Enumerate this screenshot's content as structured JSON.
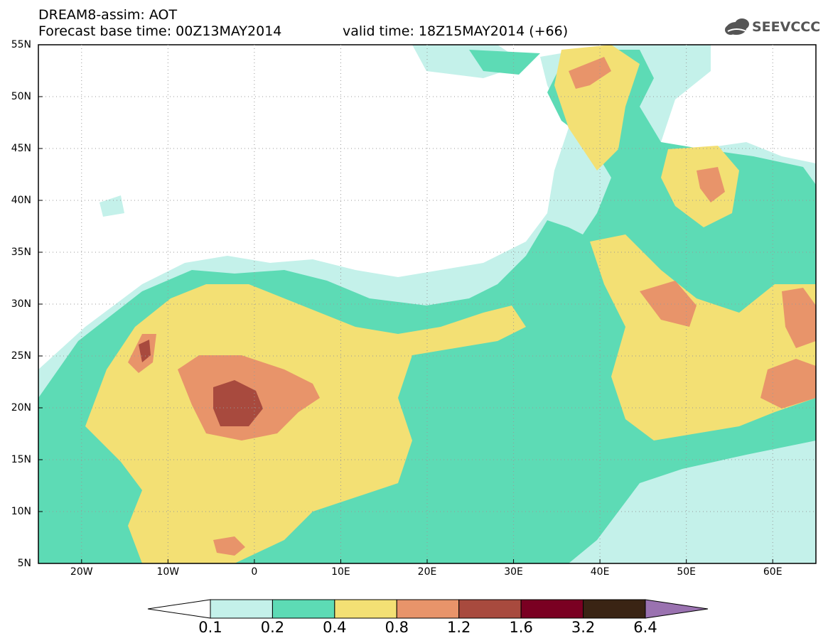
{
  "header": {
    "title": "DREAM8-assim: AOT",
    "base_time": "Forecast base time: 00Z13MAY2014",
    "valid_time": "valid time: 18Z15MAY2014 (+66)"
  },
  "logo": {
    "text": "SEEVCCC",
    "icon": "cloud-logo-icon"
  },
  "map": {
    "lat_labels": [
      "55N",
      "50N",
      "45N",
      "40N",
      "35N",
      "30N",
      "25N",
      "20N",
      "15N",
      "10N",
      "5N"
    ],
    "lon_labels": [
      "20W",
      "10W",
      "0",
      "10E",
      "20E",
      "30E",
      "40E",
      "50E",
      "60E"
    ],
    "lat_range": [
      5,
      55
    ],
    "lon_range": [
      -25,
      65
    ],
    "grid": "dotted"
  },
  "colorbar": {
    "labels": [
      "0.1",
      "0.2",
      "0.4",
      "0.8",
      "1.2",
      "1.6",
      "3.2",
      "6.4"
    ],
    "colors": [
      "#ffffff",
      "#c4f1ea",
      "#5ddbb5",
      "#f3e074",
      "#e8946a",
      "#a84a3e",
      "#7a0022",
      "#3a2414",
      "#9a72b0"
    ]
  },
  "palette": {
    "c1": "#c4f1ea",
    "c2": "#5ddbb5",
    "c3": "#f3e074",
    "c4": "#e8946a",
    "c5": "#a84a3e"
  }
}
